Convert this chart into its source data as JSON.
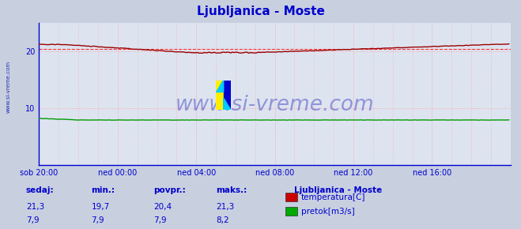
{
  "title": "Ljubljanica - Moste",
  "title_color": "#0000cc",
  "bg_color": "#c8d0e0",
  "plot_bg_color": "#dde4f0",
  "xlabel_color": "#0000cc",
  "ylabel_color": "#0000cc",
  "watermark_text": "www.si-vreme.com",
  "watermark_color": "#3333bb",
  "xlim": [
    0,
    288
  ],
  "ylim": [
    0,
    25
  ],
  "yticks": [
    10,
    20
  ],
  "x_tick_labels": [
    "sob 20:00",
    "ned 00:00",
    "ned 04:00",
    "ned 08:00",
    "ned 12:00",
    "ned 16:00"
  ],
  "x_tick_positions": [
    0,
    48,
    96,
    144,
    192,
    240
  ],
  "temp_avg": 20.4,
  "temp_color": "#990000",
  "temp_avg_line_color": "#ff3333",
  "flow_color": "#009900",
  "legend_title": "Ljubljanica - Moste",
  "legend_title_color": "#0000cc",
  "legend_labels": [
    "temperatura[C]",
    "pretok[m3/s]"
  ],
  "legend_colors": [
    "#cc0000",
    "#00aa00"
  ],
  "stats_labels": [
    "sedaj:",
    "min.:",
    "povpr.:",
    "maks.:"
  ],
  "stats_temp": [
    "21,3",
    "19,7",
    "20,4",
    "21,3"
  ],
  "stats_flow": [
    "7,9",
    "7,9",
    "7,9",
    "8,2"
  ],
  "stats_color": "#0000cc",
  "left_label": "www.si-vreme.com",
  "left_label_color": "#0000aa",
  "spine_color": "#0000cc",
  "arrow_color": "#cc0000"
}
